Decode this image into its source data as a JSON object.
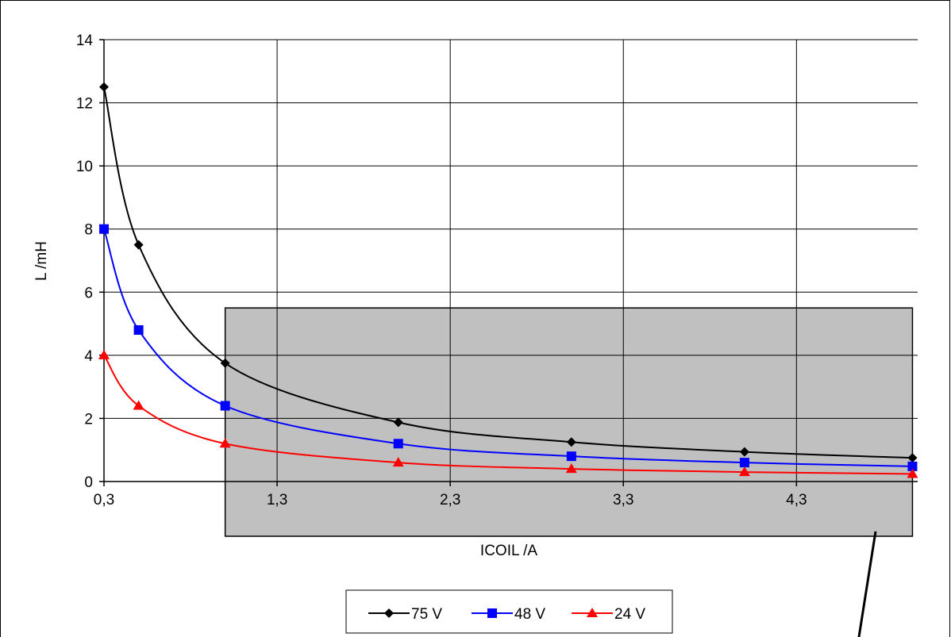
{
  "chart_data": {
    "type": "line",
    "title": "",
    "xlabel": "ICOIL /A",
    "ylabel": "L /mH",
    "xlim": [
      0.3,
      5.0
    ],
    "ylim": [
      0,
      14
    ],
    "x_ticks": [
      "0,3",
      "1,3",
      "2,3",
      "3,3",
      "4,3"
    ],
    "x_tick_values": [
      0.3,
      1.3,
      2.3,
      3.3,
      4.3
    ],
    "y_ticks": [
      "0",
      "2",
      "4",
      "6",
      "8",
      "10",
      "12",
      "14"
    ],
    "y_tick_values": [
      0,
      2,
      4,
      6,
      8,
      10,
      12,
      14
    ],
    "grid": true,
    "legend_position": "bottom-center",
    "highlight_region": {
      "x": [
        1.0,
        4.97
      ],
      "y_top": 5.5,
      "extends_below_axis": true,
      "color": "#c0c0c0"
    },
    "series": [
      {
        "name": "75 V",
        "color": "#000000",
        "marker": "diamond",
        "x": [
          0.3,
          0.5,
          1.0,
          2.0,
          3.0,
          4.0,
          4.97
        ],
        "y": [
          12.5,
          7.5,
          3.75,
          1.875,
          1.25,
          0.94,
          0.75
        ]
      },
      {
        "name": "48 V",
        "color": "#0000ff",
        "marker": "square",
        "x": [
          0.3,
          0.5,
          1.0,
          2.0,
          3.0,
          4.0,
          4.97
        ],
        "y": [
          8.0,
          4.8,
          2.4,
          1.2,
          0.8,
          0.6,
          0.48
        ]
      },
      {
        "name": "24 V",
        "color": "#ff0000",
        "marker": "triangle",
        "x": [
          0.3,
          0.5,
          1.0,
          2.0,
          3.0,
          4.0,
          4.97
        ],
        "y": [
          4.0,
          2.4,
          1.2,
          0.6,
          0.4,
          0.3,
          0.24
        ]
      }
    ]
  }
}
